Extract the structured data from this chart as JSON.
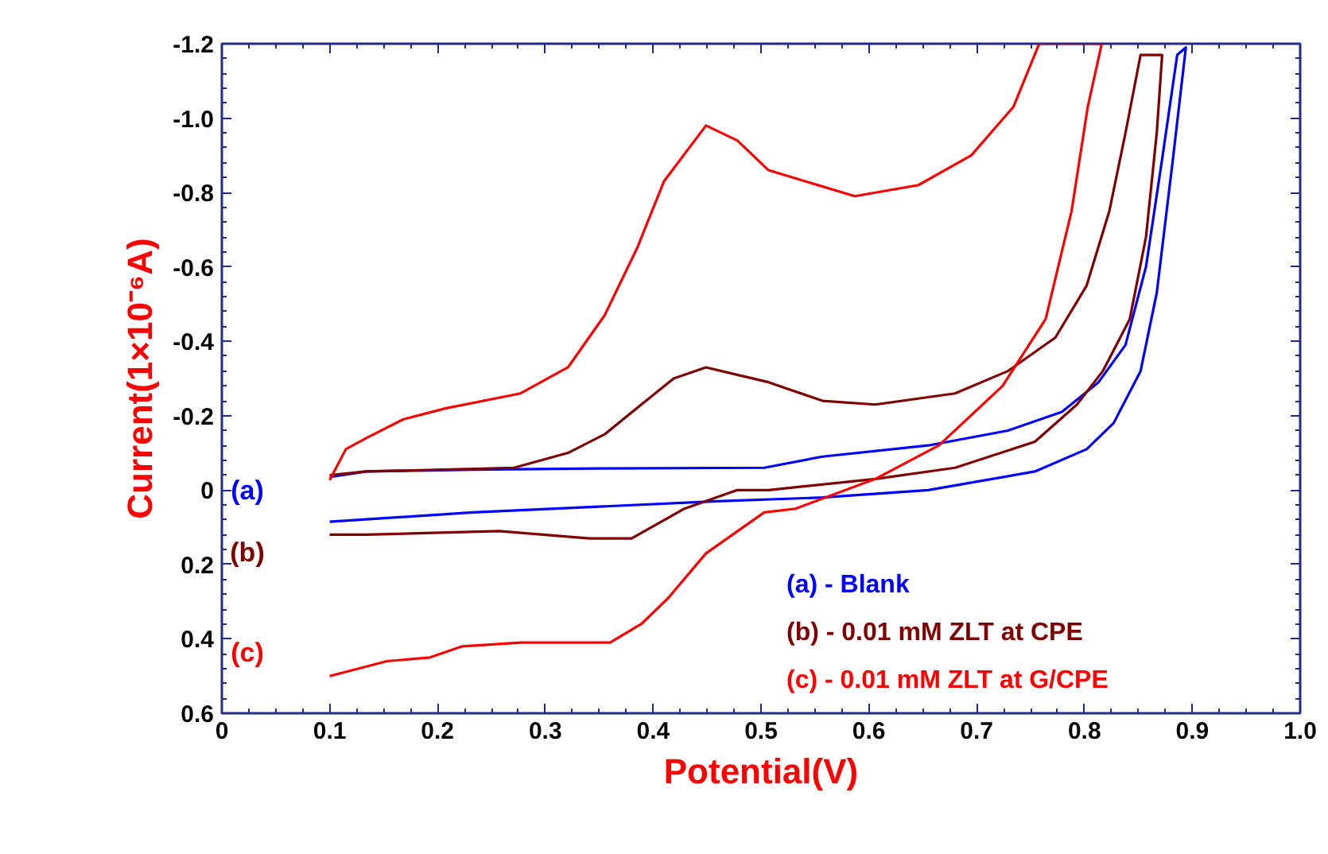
{
  "chart_data": {
    "type": "line",
    "xlabel": "Potential(V)",
    "ylabel": "Current(1×10⁻⁶A)",
    "xlim": [
      0,
      1.0
    ],
    "ylim": [
      0.6,
      -1.2
    ],
    "xticks": [
      0,
      0.1,
      0.2,
      0.3,
      0.4,
      0.5,
      0.6,
      0.7,
      0.8,
      0.9,
      {
        "value": 1,
        "label": "1.0"
      }
    ],
    "yticks": [
      -1.2,
      {
        "value": -1,
        "label": "-1.0"
      },
      -0.8,
      -0.6,
      -0.4,
      -0.2,
      0,
      0.2,
      0.4,
      0.6
    ],
    "grid": false,
    "legend": "bottom right",
    "marker": "none",
    "line_style": "solid",
    "series": [
      {
        "name": "(a) - Blank",
        "color": "#0000ff",
        "x": [
          0.1,
          0.134,
          0.233,
          0.35,
          0.503,
          0.557,
          0.655,
          0.729,
          0.779,
          0.813,
          0.838,
          0.857,
          0.872,
          0.886,
          0.894,
          0.882,
          0.867,
          0.852,
          0.827,
          0.802,
          0.754,
          0.655,
          0.557,
          0.459,
          0.233,
          0.1
        ],
        "values": [
          -0.035,
          -0.05,
          -0.055,
          -0.058,
          -0.06,
          -0.09,
          -0.12,
          -0.16,
          -0.21,
          -0.29,
          -0.39,
          -0.6,
          -0.89,
          -1.17,
          -1.19,
          -0.89,
          -0.53,
          -0.32,
          -0.18,
          -0.11,
          -0.05,
          0.0,
          0.02,
          0.03,
          0.06,
          0.085
        ]
      },
      {
        "name": "(b) - 0.01 mM ZLT at CPE",
        "color": "#800000",
        "x": [
          0.1,
          0.134,
          0.271,
          0.321,
          0.355,
          0.389,
          0.419,
          0.449,
          0.478,
          0.507,
          0.557,
          0.606,
          0.68,
          0.729,
          0.773,
          0.802,
          0.823,
          0.838,
          0.852,
          0.872,
          0.867,
          0.857,
          0.842,
          0.817,
          0.793,
          0.754,
          0.68,
          0.606,
          0.507,
          0.478,
          0.429,
          0.38,
          0.341,
          0.257,
          0.134,
          0.1
        ],
        "values": [
          -0.04,
          -0.05,
          -0.06,
          -0.1,
          -0.15,
          -0.23,
          -0.3,
          -0.33,
          -0.31,
          -0.29,
          -0.24,
          -0.23,
          -0.26,
          -0.32,
          -0.41,
          -0.55,
          -0.75,
          -0.96,
          -1.17,
          -1.17,
          -0.96,
          -0.68,
          -0.46,
          -0.32,
          -0.23,
          -0.13,
          -0.06,
          -0.03,
          0.0,
          0.0,
          0.05,
          0.13,
          0.13,
          0.11,
          0.12,
          0.12
        ]
      },
      {
        "name": "(c) - 0.01 mM ZLT at G/CPE",
        "color": "#ff0000",
        "x": [
          0.1,
          0.115,
          0.134,
          0.168,
          0.208,
          0.277,
          0.321,
          0.355,
          0.385,
          0.41,
          0.449,
          0.478,
          0.507,
          0.587,
          0.646,
          0.695,
          0.734,
          0.758,
          0.816,
          0.803,
          0.788,
          0.764,
          0.724,
          0.665,
          0.606,
          0.532,
          0.503,
          0.449,
          0.414,
          0.389,
          0.36,
          0.321,
          0.277,
          0.223,
          0.193,
          0.153,
          0.1
        ],
        "values": [
          -0.027,
          -0.11,
          -0.14,
          -0.19,
          -0.22,
          -0.26,
          -0.33,
          -0.47,
          -0.65,
          -0.83,
          -0.98,
          -0.94,
          -0.86,
          -0.79,
          -0.82,
          -0.9,
          -1.03,
          -1.2,
          -1.2,
          -1.03,
          -0.75,
          -0.46,
          -0.28,
          -0.12,
          -0.03,
          0.05,
          0.06,
          0.17,
          0.29,
          0.36,
          0.41,
          0.41,
          0.41,
          0.42,
          0.45,
          0.46,
          0.5
        ]
      }
    ],
    "annotations": [
      "(a)",
      "(b)",
      "(c)"
    ]
  }
}
